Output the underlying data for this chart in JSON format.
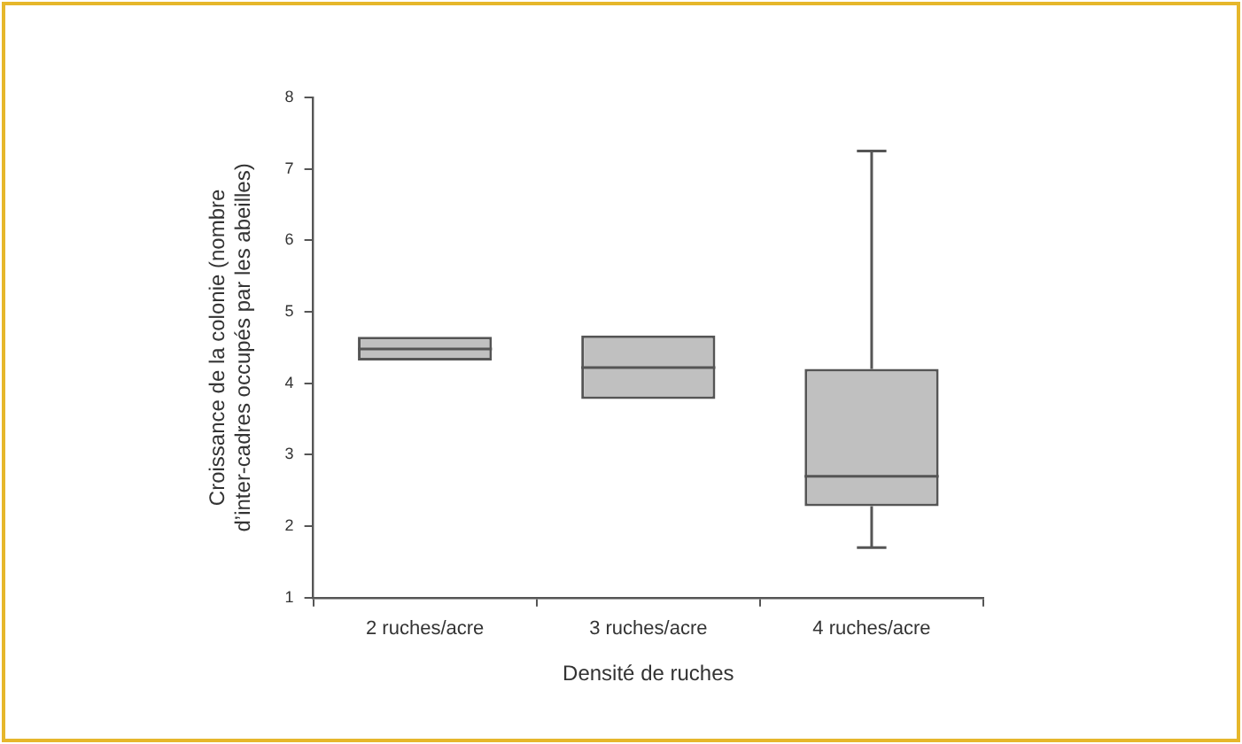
{
  "chart_data": {
    "type": "box",
    "xlabel": "Densité de ruches",
    "ylabel": "Croissance de la colonie (nombre d’inter-cadres occupés par les abeilles)",
    "categories": [
      "2 ruches/acre",
      "3 ruches/acre",
      "4 ruches/acre"
    ],
    "color": "#c0c0c0",
    "boxes": [
      {
        "low": 4.32,
        "q1": 4.32,
        "median": 4.48,
        "q3": 4.65,
        "high": 4.65
      },
      {
        "low": 3.78,
        "q1": 3.78,
        "median": 4.22,
        "q3": 4.67,
        "high": 4.67
      },
      {
        "low": 1.7,
        "q1": 2.28,
        "median": 2.7,
        "q3": 4.2,
        "high": 7.25
      }
    ],
    "ylim": [
      1,
      8
    ],
    "yticks": [
      1,
      2,
      3,
      4,
      5,
      6,
      7,
      8
    ],
    "grid": false,
    "legend": false
  }
}
